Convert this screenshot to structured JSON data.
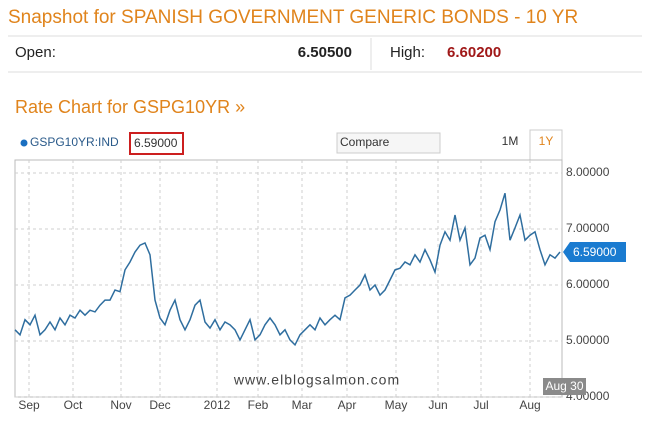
{
  "header": {
    "title": "Snapshot for SPANISH GOVERNMENT GENERIC BONDS - 10 YR"
  },
  "quote": {
    "open_label": "Open:",
    "open": "6.50500",
    "high_label": "High:",
    "high": "6.60200"
  },
  "section_title": "Rate Chart for GSPG10YR »",
  "toolbar": {
    "symbol": "GSPG10YR:IND",
    "compare": "Compare",
    "ranges": [
      "1M",
      "1Y"
    ]
  },
  "watermark": "www.elblogsalmon.com",
  "chart_data": {
    "type": "line",
    "color": "#2f6e9f",
    "values": [
      5.2,
      5.11,
      5.38,
      5.29,
      5.46,
      5.11,
      5.2,
      5.34,
      5.2,
      5.41,
      5.29,
      5.46,
      5.41,
      5.55,
      5.46,
      5.55,
      5.52,
      5.64,
      5.73,
      5.73,
      5.91,
      5.88,
      6.27,
      6.41,
      6.59,
      6.71,
      6.75,
      6.54,
      5.73,
      5.41,
      5.29,
      5.55,
      5.73,
      5.38,
      5.2,
      5.38,
      5.64,
      5.73,
      5.34,
      5.23,
      5.38,
      5.2,
      5.34,
      5.29,
      5.2,
      5.02,
      5.2,
      5.38,
      5.02,
      5.11,
      5.29,
      5.41,
      5.29,
      5.11,
      5.2,
      5.02,
      4.93,
      5.11,
      5.2,
      5.29,
      5.2,
      5.41,
      5.29,
      5.38,
      5.46,
      5.38,
      5.77,
      5.82,
      5.91,
      6.0,
      6.18,
      5.91,
      6.0,
      5.82,
      5.91,
      6.09,
      6.27,
      6.3,
      6.41,
      6.36,
      6.54,
      6.41,
      6.63,
      6.45,
      6.23,
      6.71,
      6.95,
      6.8,
      7.25,
      6.8,
      7.02,
      6.36,
      6.48,
      6.84,
      6.89,
      6.63,
      7.13,
      7.34,
      7.64,
      6.8,
      7.02,
      7.25,
      6.8,
      6.89,
      6.95,
      6.63,
      6.36,
      6.54,
      6.48,
      6.59
    ],
    "xlim": [
      0,
      109
    ],
    "xticks": [
      {
        "value": 2.8,
        "label": "Sep"
      },
      {
        "value": 11.6,
        "label": "Oct"
      },
      {
        "value": 21.2,
        "label": "Nov"
      },
      {
        "value": 29,
        "label": "Dec"
      },
      {
        "value": 40.4,
        "label": "2012"
      },
      {
        "value": 48.6,
        "label": "Feb"
      },
      {
        "value": 57.4,
        "label": "Mar"
      },
      {
        "value": 66.4,
        "label": "Apr"
      },
      {
        "value": 76.2,
        "label": "May"
      },
      {
        "value": 84.6,
        "label": "Jun"
      },
      {
        "value": 93.2,
        "label": "Jul"
      },
      {
        "value": 103,
        "label": "Aug"
      }
    ],
    "ylim": [
      4,
      8.2
    ],
    "yticks": [
      {
        "value": 4,
        "label": "4.00000"
      },
      {
        "value": 5,
        "label": "5.00000"
      },
      {
        "value": 6,
        "label": "6.00000"
      },
      {
        "value": 7,
        "label": "7.00000"
      },
      {
        "value": 8,
        "label": "8.00000"
      }
    ],
    "grid": true,
    "last_price": {
      "value": 6.59,
      "label": "6.59000"
    },
    "cursor_label": "Aug 30"
  }
}
